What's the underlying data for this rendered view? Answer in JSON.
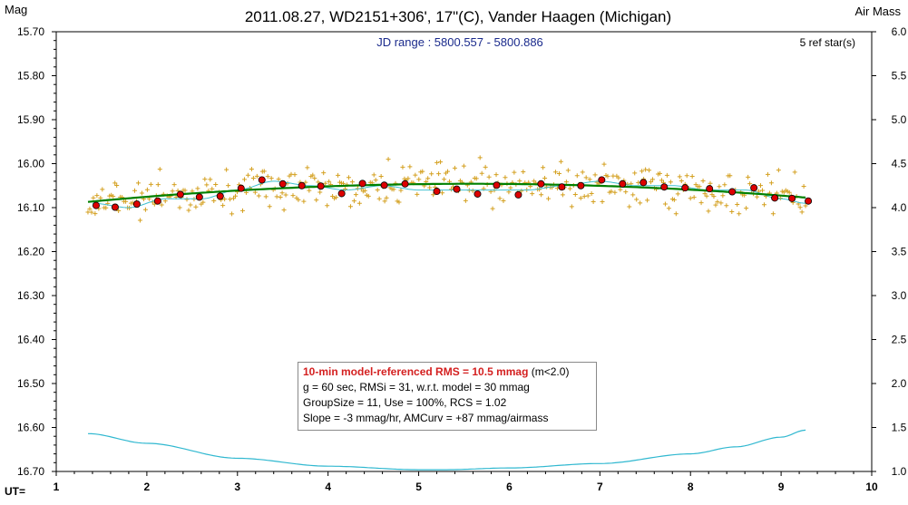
{
  "chart_data": {
    "type": "scatter",
    "title": "2011.08.27, WD2151+306', 17\"(C), Vander Haagen (Michigan)",
    "subtitle": "JD range : 5800.557 - 5800.886",
    "ref_stars": "5 ref star(s)",
    "ylabel_left": "Mag",
    "ylabel_right": "Air Mass",
    "xlabel": "UT=",
    "xlim": [
      1,
      10
    ],
    "ylim_left": [
      15.7,
      16.7
    ],
    "ylim_left_inverted": true,
    "ylim_right": [
      1.0,
      6.0
    ],
    "x_ticks": [
      "1",
      "2",
      "3",
      "4",
      "5",
      "6",
      "7",
      "8",
      "9",
      "10"
    ],
    "y_ticks_left": [
      "15.70",
      "15.80",
      "15.90",
      "16.00",
      "16.10",
      "16.20",
      "16.30",
      "16.40",
      "16.50",
      "16.60",
      "16.70"
    ],
    "y_ticks_right": [
      "6.0",
      "5.5",
      "5.0",
      "4.5",
      "4.0",
      "3.5",
      "3.0",
      "2.5",
      "2.0",
      "1.5",
      "1.0"
    ],
    "series": [
      {
        "kind": "raw_points",
        "color": "#d4a020",
        "marker": "plus",
        "x_range": [
          1.35,
          9.27
        ],
        "count": 400,
        "mean_mag": 16.07,
        "scatter_rms_mag": 0.031
      },
      {
        "kind": "binned_means",
        "color": "#dd0000",
        "marker": "circle",
        "points": [
          [
            1.44,
            16.095
          ],
          [
            1.65,
            16.099
          ],
          [
            1.89,
            16.092
          ],
          [
            2.12,
            16.085
          ],
          [
            2.37,
            16.07
          ],
          [
            2.58,
            16.076
          ],
          [
            2.81,
            16.074
          ],
          [
            3.04,
            16.056
          ],
          [
            3.27,
            16.037
          ],
          [
            3.5,
            16.046
          ],
          [
            3.71,
            16.05
          ],
          [
            3.92,
            16.051
          ],
          [
            4.15,
            16.068
          ],
          [
            4.38,
            16.045
          ],
          [
            4.62,
            16.049
          ],
          [
            4.85,
            16.046
          ],
          [
            5.2,
            16.063
          ],
          [
            5.42,
            16.058
          ],
          [
            5.65,
            16.069
          ],
          [
            5.86,
            16.049
          ],
          [
            6.1,
            16.071
          ],
          [
            6.35,
            16.046
          ],
          [
            6.58,
            16.053
          ],
          [
            6.79,
            16.05
          ],
          [
            7.02,
            16.037
          ],
          [
            7.25,
            16.046
          ],
          [
            7.48,
            16.043
          ],
          [
            7.71,
            16.053
          ],
          [
            7.94,
            16.055
          ],
          [
            8.21,
            16.057
          ],
          [
            8.46,
            16.064
          ],
          [
            8.7,
            16.055
          ],
          [
            8.93,
            16.078
          ],
          [
            9.12,
            16.079
          ],
          [
            9.3,
            16.085
          ]
        ]
      },
      {
        "kind": "model_fit",
        "color": "#008000",
        "model": "mag = a + b*(x-5.3) + c*(x-5.3)^2",
        "coefficients": {
          "a": 16.046,
          "b": -0.0013,
          "c": 0.0023
        },
        "x_range": [
          1.35,
          9.27
        ]
      },
      {
        "kind": "running_mean",
        "color": "#40c0d0",
        "points": [
          [
            1.4,
            16.09
          ],
          [
            1.8,
            16.1
          ],
          [
            2.2,
            16.08
          ],
          [
            2.6,
            16.08
          ],
          [
            3.0,
            16.06
          ],
          [
            3.4,
            16.04
          ],
          [
            3.8,
            16.05
          ],
          [
            4.2,
            16.06
          ],
          [
            4.6,
            16.05
          ],
          [
            5.0,
            16.06
          ],
          [
            5.4,
            16.06
          ],
          [
            5.8,
            16.06
          ],
          [
            6.2,
            16.06
          ],
          [
            6.6,
            16.05
          ],
          [
            7.0,
            16.04
          ],
          [
            7.4,
            16.05
          ],
          [
            7.8,
            16.05
          ],
          [
            8.2,
            16.06
          ],
          [
            8.6,
            16.06
          ],
          [
            9.0,
            16.08
          ],
          [
            9.27,
            16.09
          ]
        ]
      },
      {
        "kind": "air_mass",
        "axis": "right",
        "color": "#30b8d0",
        "points": [
          [
            1.35,
            1.43
          ],
          [
            2.0,
            1.32
          ],
          [
            3.0,
            1.15
          ],
          [
            4.0,
            1.06
          ],
          [
            5.0,
            1.02
          ],
          [
            5.3,
            1.02
          ],
          [
            6.0,
            1.04
          ],
          [
            7.0,
            1.09
          ],
          [
            8.0,
            1.2
          ],
          [
            8.5,
            1.28
          ],
          [
            9.0,
            1.39
          ],
          [
            9.27,
            1.47
          ]
        ]
      }
    ],
    "grid": false,
    "stats_box": {
      "line1_bold": "10-min model-referenced RMS = 10.5 mmag",
      "line1_suffix": " (m<2.0)",
      "line2": "g = 60 sec, RMSi = 31, w.r.t. model = 30 mmag",
      "line3": "GroupSize = 11, Use = 100%, RCS = 1.02",
      "line4": "Slope = -3 mmag/hr, AMCurv = +87 mmag/airmass"
    }
  }
}
